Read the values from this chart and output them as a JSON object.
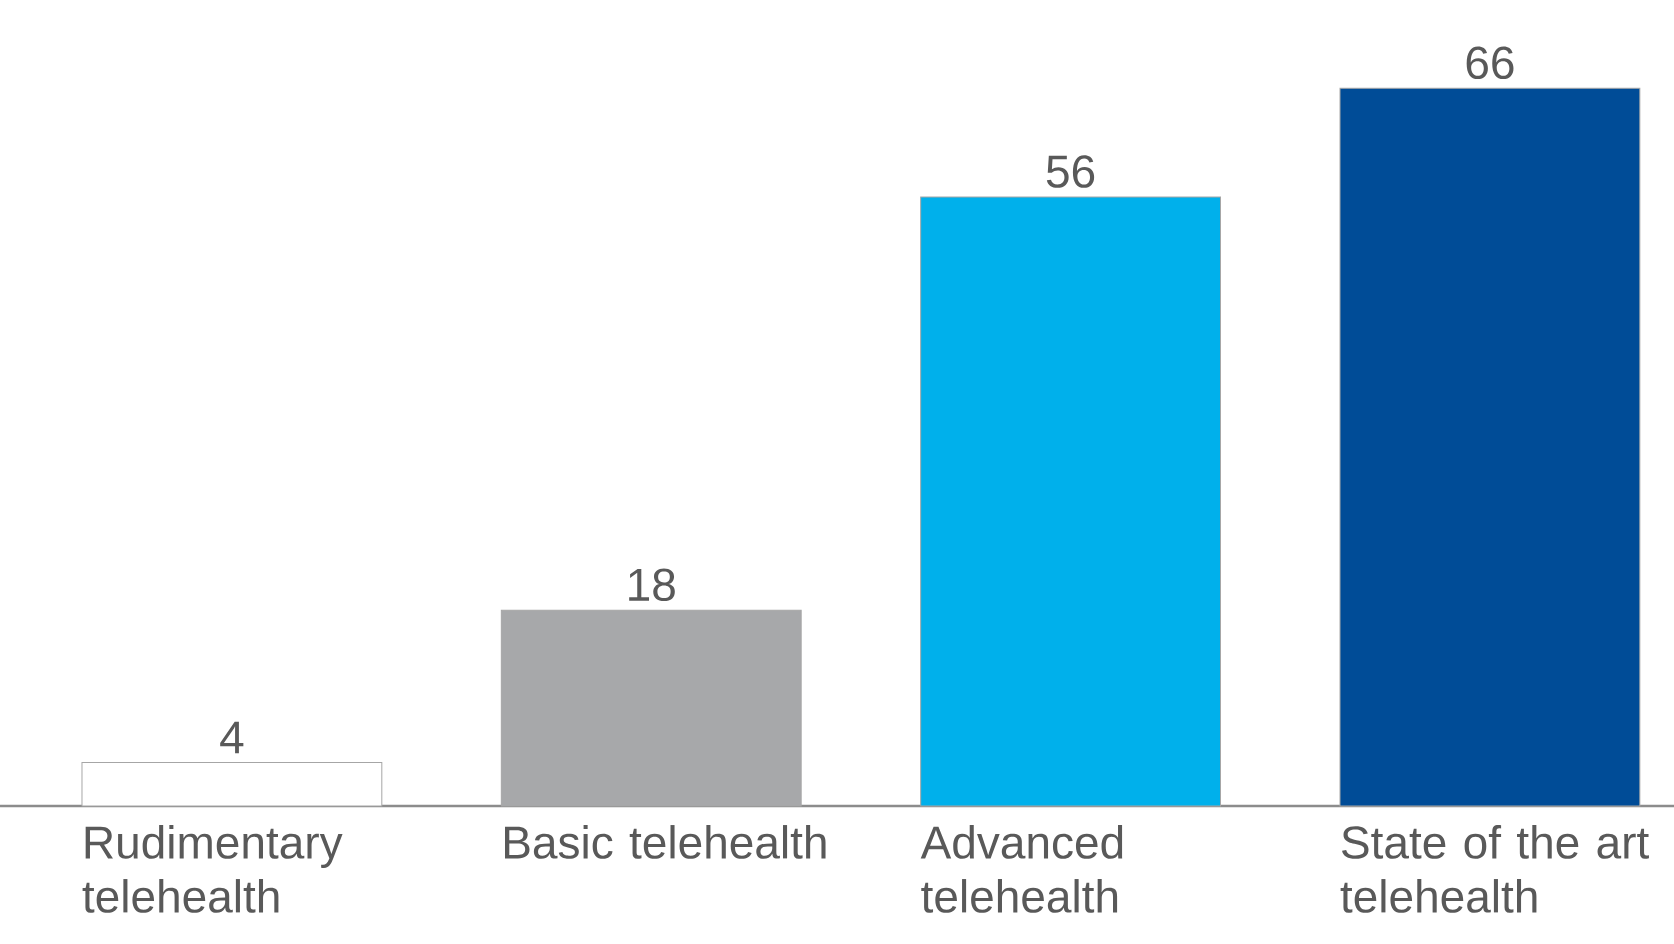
{
  "chart_data": {
    "type": "bar",
    "categories": [
      "Rudimentary telehealth",
      "Basic telehealth",
      "Advanced telehealth",
      "State of the art telehealth"
    ],
    "values": [
      4,
      18,
      56,
      66
    ],
    "colors": [
      "#ffffff",
      "#a7a8aa",
      "#00b0eb",
      "#004c97"
    ],
    "data_labels": true
  }
}
